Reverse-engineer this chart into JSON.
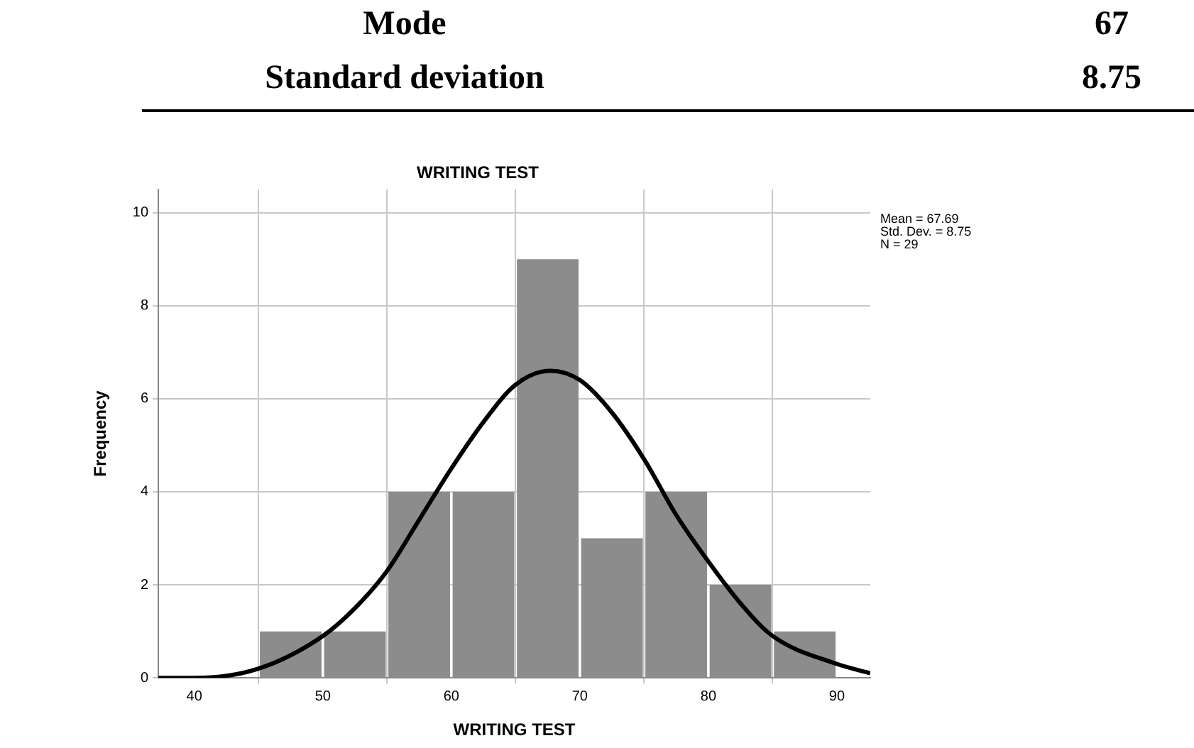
{
  "chart_data": {
    "type": "histogram",
    "title": "WRITING TEST",
    "xlabel": "WRITING TEST",
    "ylabel": "Frequency",
    "bins": [
      45,
      50,
      55,
      60,
      65,
      70,
      75,
      80,
      85,
      90
    ],
    "series": [
      {
        "color": "#8c8c8c",
        "values": [
          1,
          1,
          4,
          4,
          9,
          3,
          4,
          2,
          1
        ]
      },
      {
        "type": "line",
        "color": "#000000",
        "x": [
          37.2,
          40,
          45,
          50,
          52.5,
          55,
          57.5,
          60,
          62.5,
          65,
          67.69,
          70,
          72.5,
          75,
          77.5,
          80,
          82.5,
          85,
          90,
          92.6
        ],
        "values": [
          0.0,
          0.0,
          0.2,
          0.9,
          1.5,
          2.3,
          3.4,
          4.5,
          5.5,
          6.3,
          6.6,
          6.4,
          5.7,
          4.7,
          3.5,
          2.5,
          1.6,
          0.9,
          0.3,
          0.1
        ]
      }
    ],
    "xlim": [
      37.2,
      92.6
    ],
    "xticks": [
      40,
      50,
      60,
      70,
      80,
      90
    ],
    "ylim": [
      0,
      10.5
    ],
    "yticks": [
      0,
      2,
      4,
      6,
      8,
      10
    ],
    "grid": true,
    "legend": false,
    "marker": "none",
    "line_style": "solid",
    "annotations": [
      "Mean = 67.69",
      "Std. Dev. = 8.75",
      "N = 29",
      "Mode",
      "67",
      "Standard deviation",
      "8.75"
    ]
  }
}
